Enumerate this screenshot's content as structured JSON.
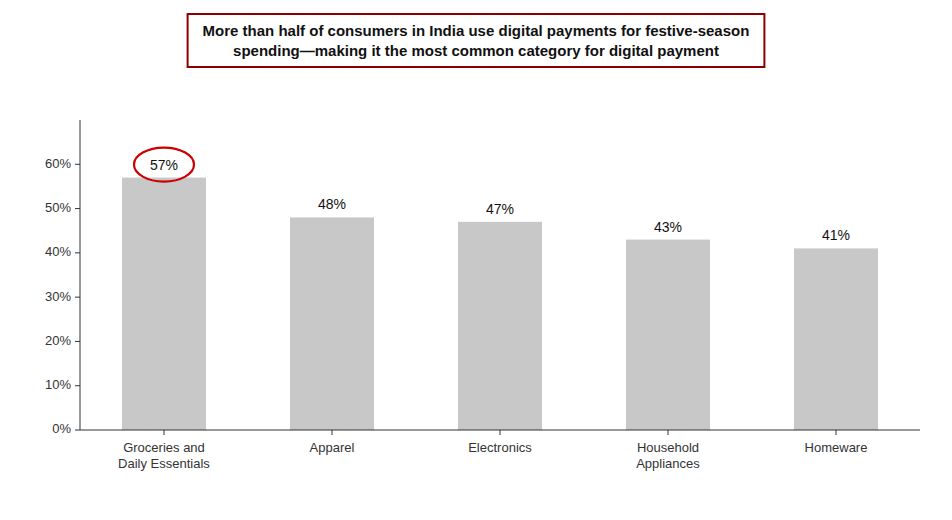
{
  "chart_data": {
    "type": "bar",
    "title": "More than half of consumers in India use digital payments for festive-season\nspending—making it the most common category for digital payment",
    "categories": [
      "Groceries and\nDaily Essentials",
      "Apparel",
      "Electronics",
      "Household\nAppliances",
      "Homeware"
    ],
    "values": [
      57,
      48,
      47,
      43,
      41
    ],
    "value_labels": [
      "57%",
      "48%",
      "47%",
      "43%",
      "41%"
    ],
    "data_labels": true,
    "color": "#c8c8c8",
    "ylim": [
      0,
      70
    ],
    "yticks": [
      {
        "value": 0,
        "label": "0%"
      },
      {
        "value": 10,
        "label": "10%"
      },
      {
        "value": 20,
        "label": "20%"
      },
      {
        "value": 30,
        "label": "30%"
      },
      {
        "value": 40,
        "label": "40%"
      },
      {
        "value": 50,
        "label": "50%"
      },
      {
        "value": 60,
        "label": "60%"
      }
    ],
    "grid": false
  }
}
